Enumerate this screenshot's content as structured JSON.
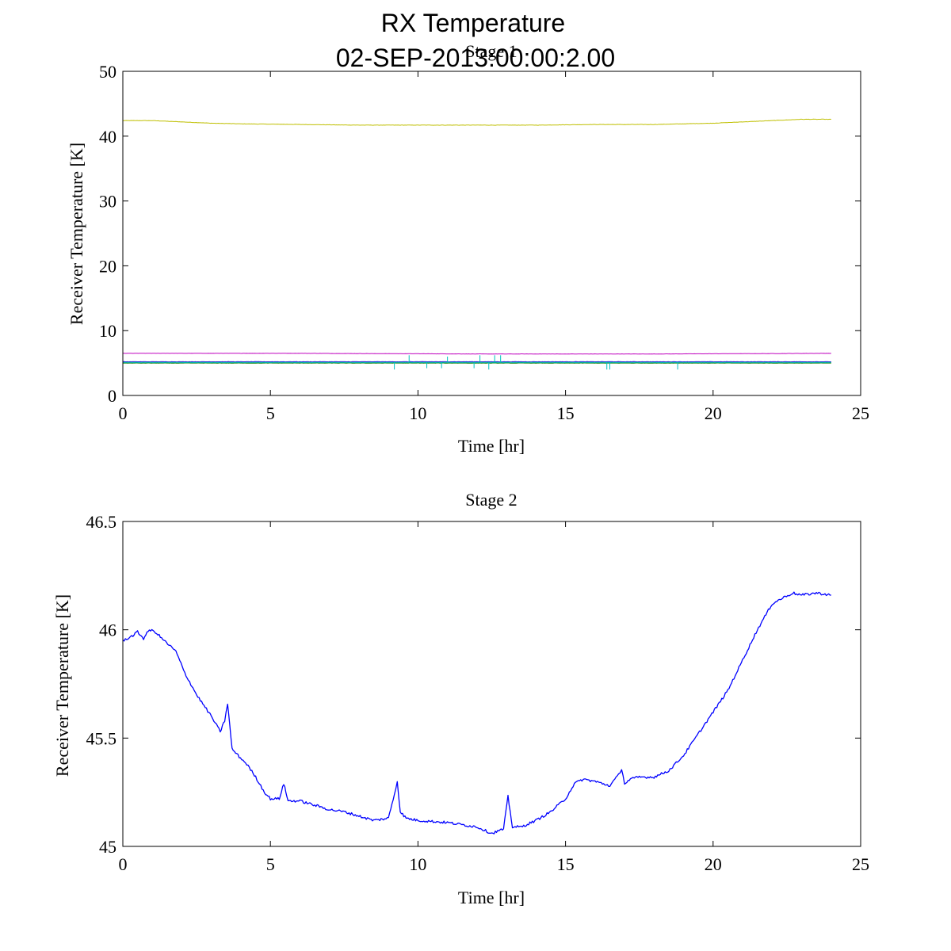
{
  "figure": {
    "title_line1": "RX Temperature",
    "title_line2": "02-SEP-2013:00:00:2.00"
  },
  "chart_data": [
    {
      "type": "line",
      "title": "Stage 1",
      "xlabel": "Time [hr]",
      "ylabel": "Receiver Temperature [K]",
      "xlim": [
        0,
        25
      ],
      "ylim": [
        0,
        50
      ],
      "xticks": [
        0,
        5,
        10,
        15,
        20,
        25
      ],
      "yticks": [
        0,
        10,
        20,
        30,
        40,
        50
      ],
      "grid": false,
      "series": [
        {
          "name": "yellow",
          "color": "#bfbf00",
          "x": [
            0,
            1,
            2,
            3,
            4,
            6,
            8,
            10,
            12,
            14,
            16,
            18,
            20,
            21,
            22,
            23,
            24
          ],
          "y": [
            42.4,
            42.4,
            42.2,
            42.0,
            41.9,
            41.8,
            41.7,
            41.7,
            41.7,
            41.7,
            41.8,
            41.8,
            42.0,
            42.2,
            42.4,
            42.6,
            42.6
          ]
        },
        {
          "name": "magenta",
          "color": "#bf00bf",
          "x": [
            0,
            6,
            12,
            18,
            24
          ],
          "y": [
            6.5,
            6.5,
            6.4,
            6.4,
            6.5
          ]
        },
        {
          "name": "blue",
          "color": "#0000ff",
          "x": [
            0,
            6,
            12,
            18,
            24
          ],
          "y": [
            5.2,
            5.2,
            5.2,
            5.2,
            5.2
          ]
        },
        {
          "name": "red",
          "color": "#ff0000",
          "x": [
            0,
            6,
            12,
            18,
            24
          ],
          "y": [
            5.1,
            5.1,
            5.1,
            5.1,
            5.1
          ]
        },
        {
          "name": "green",
          "color": "#008000",
          "x": [
            0,
            6,
            12,
            18,
            24
          ],
          "y": [
            5.0,
            5.0,
            5.0,
            5.0,
            5.0
          ]
        },
        {
          "name": "cyan",
          "color": "#00bfbf",
          "x": [
            0,
            6,
            12,
            18,
            24
          ],
          "y": [
            5.1,
            5.1,
            5.1,
            5.1,
            5.1
          ],
          "spikes": [
            {
              "x": 9.2,
              "y": 4.0
            },
            {
              "x": 9.7,
              "y": 6.2
            },
            {
              "x": 10.3,
              "y": 4.2
            },
            {
              "x": 10.8,
              "y": 4.2
            },
            {
              "x": 11.0,
              "y": 6.0
            },
            {
              "x": 11.9,
              "y": 4.2
            },
            {
              "x": 12.1,
              "y": 6.2
            },
            {
              "x": 12.4,
              "y": 4.0
            },
            {
              "x": 12.6,
              "y": 6.2
            },
            {
              "x": 12.8,
              "y": 6.2
            },
            {
              "x": 16.4,
              "y": 4.0
            },
            {
              "x": 16.5,
              "y": 4.0
            },
            {
              "x": 18.8,
              "y": 4.0
            }
          ]
        }
      ]
    },
    {
      "type": "line",
      "title": "Stage 2",
      "xlabel": "Time [hr]",
      "ylabel": "Receiver Temperature [K]",
      "xlim": [
        0,
        25
      ],
      "ylim": [
        45,
        46.5
      ],
      "xticks": [
        0,
        5,
        10,
        15,
        20,
        25
      ],
      "yticks": [
        45,
        45.5,
        46,
        46.5
      ],
      "ytick_labels": [
        "45",
        "45.5",
        "46",
        "46.5"
      ],
      "grid": false,
      "series": [
        {
          "name": "stage2",
          "color": "#0000ff",
          "x": [
            0,
            0.3,
            0.5,
            0.7,
            0.9,
            1.1,
            1.4,
            1.8,
            2.1,
            2.5,
            3.0,
            3.3,
            3.45,
            3.55,
            3.7,
            3.9,
            4.2,
            4.5,
            4.8,
            5.0,
            5.3,
            5.45,
            5.6,
            6.0,
            6.5,
            7.0,
            7.5,
            8.0,
            8.5,
            9.0,
            9.2,
            9.3,
            9.4,
            9.6,
            10.0,
            11.0,
            12.0,
            12.5,
            12.9,
            13.05,
            13.2,
            13.5,
            14.0,
            14.5,
            15.0,
            15.3,
            15.6,
            16.0,
            16.5,
            16.8,
            16.9,
            17.0,
            17.2,
            17.5,
            18.0,
            18.5,
            19.0,
            19.5,
            20.0,
            20.5,
            21.0,
            21.5,
            22.0,
            22.4,
            22.7,
            23.0,
            23.5,
            24.0
          ],
          "y": [
            45.95,
            45.97,
            45.99,
            45.96,
            46.0,
            45.99,
            45.95,
            45.9,
            45.8,
            45.7,
            45.6,
            45.53,
            45.58,
            45.66,
            45.45,
            45.42,
            45.38,
            45.32,
            45.25,
            45.22,
            45.22,
            45.29,
            45.21,
            45.21,
            45.19,
            45.17,
            45.16,
            45.14,
            45.12,
            45.13,
            45.24,
            45.3,
            45.16,
            45.13,
            45.12,
            45.11,
            45.09,
            45.06,
            45.08,
            45.23,
            45.09,
            45.09,
            45.12,
            45.16,
            45.22,
            45.29,
            45.31,
            45.3,
            45.28,
            45.33,
            45.36,
            45.29,
            45.31,
            45.32,
            45.32,
            45.35,
            45.42,
            45.52,
            45.62,
            45.72,
            45.86,
            46.0,
            46.12,
            46.15,
            46.17,
            46.16,
            46.17,
            46.16
          ]
        }
      ]
    }
  ]
}
